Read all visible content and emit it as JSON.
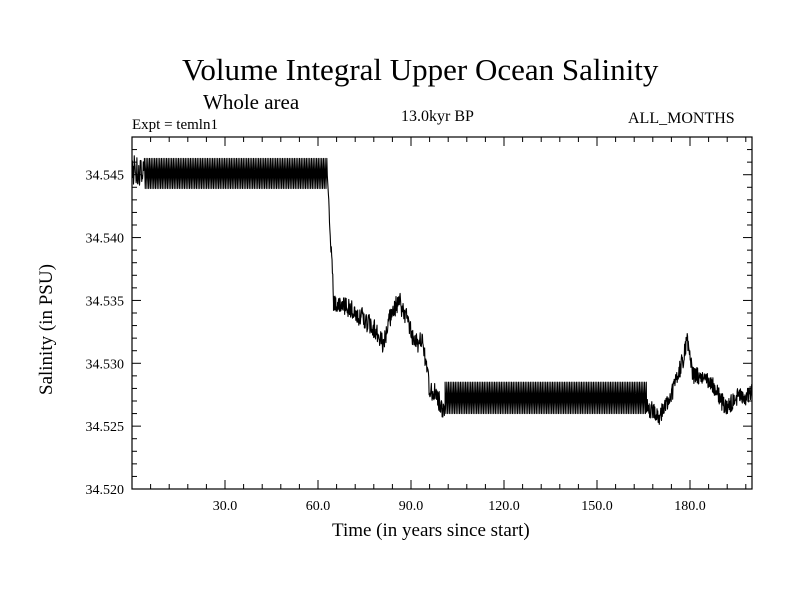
{
  "chart_data": {
    "type": "line",
    "title": "Volume Integral Upper Ocean Salinity",
    "subtitle": "Whole area",
    "experiment": "Expt = temln1",
    "period": "13.0kyr BP",
    "months": "ALL_MONTHS",
    "xlabel": "Time (in years since start)",
    "ylabel": "Salinity (in PSU)",
    "xlim": [
      0,
      200
    ],
    "ylim": [
      34.52,
      34.548
    ],
    "xticks": [
      30,
      60,
      90,
      120,
      150,
      180
    ],
    "xtick_labels": [
      "30.0",
      "60.0",
      "90.0",
      "120.0",
      "150.0",
      "180.0"
    ],
    "yticks": [
      34.52,
      34.525,
      34.53,
      34.535,
      34.54,
      34.545
    ],
    "ytick_labels": [
      "34.520",
      "34.525",
      "34.530",
      "34.535",
      "34.540",
      "34.545"
    ],
    "grid": false,
    "series": [
      {
        "color": "#000000",
        "segments": [
          {
            "kind": "noisy",
            "x": [
              0,
              4
            ],
            "center": [
              34.5455,
              34.545
            ],
            "amp": 0.0013,
            "seed": 1
          },
          {
            "kind": "square",
            "x": [
              4,
              63
            ],
            "low": 34.5439,
            "high": 34.5463,
            "period": 0.55
          },
          {
            "kind": "noisy",
            "x": [
              63,
              65
            ],
            "center": [
              34.5445,
              34.5355
            ],
            "amp": 0.0008,
            "seed": 2
          },
          {
            "kind": "trace",
            "amp": 0.0008,
            "seed": 3,
            "points": [
              [
                65,
                34.535
              ],
              [
                67,
                34.5345
              ],
              [
                70,
                34.5345
              ],
              [
                72,
                34.534
              ],
              [
                75,
                34.5335
              ],
              [
                77,
                34.533
              ],
              [
                79,
                34.5325
              ],
              [
                80,
                34.532
              ],
              [
                81,
                34.5315
              ],
              [
                82,
                34.5325
              ],
              [
                83,
                34.5335
              ],
              [
                85,
                34.5345
              ],
              [
                86,
                34.535
              ],
              [
                87,
                34.5345
              ],
              [
                88,
                34.534
              ],
              [
                89,
                34.5335
              ],
              [
                90,
                34.5325
              ],
              [
                91,
                34.532
              ],
              [
                92,
                34.5315
              ],
              [
                93,
                34.532
              ],
              [
                94,
                34.5315
              ],
              [
                95,
                34.5295
              ],
              [
                96,
                34.528
              ],
              [
                98,
                34.5275
              ],
              [
                100,
                34.5265
              ],
              [
                101,
                34.5265
              ]
            ]
          },
          {
            "kind": "square",
            "x": [
              101,
              166
            ],
            "low": 34.526,
            "high": 34.5285,
            "period": 0.55
          },
          {
            "kind": "trace",
            "amp": 0.0007,
            "seed": 4,
            "points": [
              [
                166,
                34.5265
              ],
              [
                168,
                34.5262
              ],
              [
                170,
                34.5258
              ],
              [
                172,
                34.5265
              ],
              [
                174,
                34.5275
              ],
              [
                176,
                34.529
              ],
              [
                178,
                34.5305
              ],
              [
                179,
                34.5318
              ],
              [
                180,
                34.5305
              ],
              [
                181,
                34.529
              ],
              [
                183,
                34.529
              ],
              [
                185,
                34.529
              ],
              [
                186,
                34.5285
              ],
              [
                188,
                34.528
              ],
              [
                190,
                34.527
              ],
              [
                192,
                34.5265
              ],
              [
                194,
                34.527
              ],
              [
                196,
                34.5275
              ],
              [
                198,
                34.5272
              ],
              [
                200,
                34.5278
              ]
            ]
          }
        ]
      }
    ]
  }
}
